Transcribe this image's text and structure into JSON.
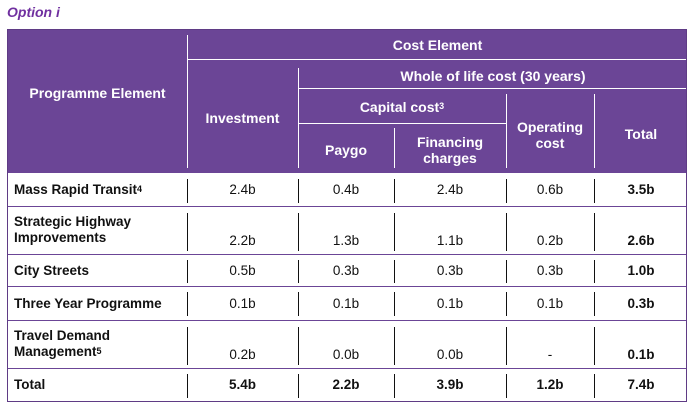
{
  "caption": "Option i",
  "header": {
    "programme_element": "Programme Element",
    "cost_element": "Cost Element",
    "whole_of_life": "Whole of life cost (30 years)",
    "investment": "Investment",
    "capital_cost": "Capital cost",
    "capital_cost_note": "3",
    "paygo": "Paygo",
    "financing_1": "Financing",
    "financing_2": "charges",
    "operating_1": "Operating",
    "operating_2": "cost",
    "total": "Total"
  },
  "rows": [
    {
      "label_1": "Mass Rapid Transit",
      "label_note": "4",
      "label_2": "",
      "investment": "2.4b",
      "paygo": "0.4b",
      "financing": "2.4b",
      "operating": "0.6b",
      "total": "3.5b"
    },
    {
      "label_1": "Strategic Highway",
      "label_note": "",
      "label_2": "Improvements",
      "investment": "2.2b",
      "paygo": "1.3b",
      "financing": "1.1b",
      "operating": "0.2b",
      "total": "2.6b"
    },
    {
      "label_1": "City Streets",
      "label_note": "",
      "label_2": "",
      "investment": "0.5b",
      "paygo": "0.3b",
      "financing": "0.3b",
      "operating": "0.3b",
      "total": "1.0b"
    },
    {
      "label_1": "Three Year Programme",
      "label_note": "",
      "label_2": "",
      "investment": "0.1b",
      "paygo": "0.1b",
      "financing": "0.1b",
      "operating": "0.1b",
      "total": "0.3b"
    },
    {
      "label_1": "Travel Demand",
      "label_note": "5",
      "label_2": "Management",
      "investment": "0.2b",
      "paygo": "0.0b",
      "financing": "0.0b",
      "operating": "-",
      "total": "0.1b"
    },
    {
      "label_1": "Total",
      "label_note": "",
      "label_2": "",
      "investment": "5.4b",
      "paygo": "2.2b",
      "financing": "3.9b",
      "operating": "1.2b",
      "total": "7.4b"
    }
  ]
}
